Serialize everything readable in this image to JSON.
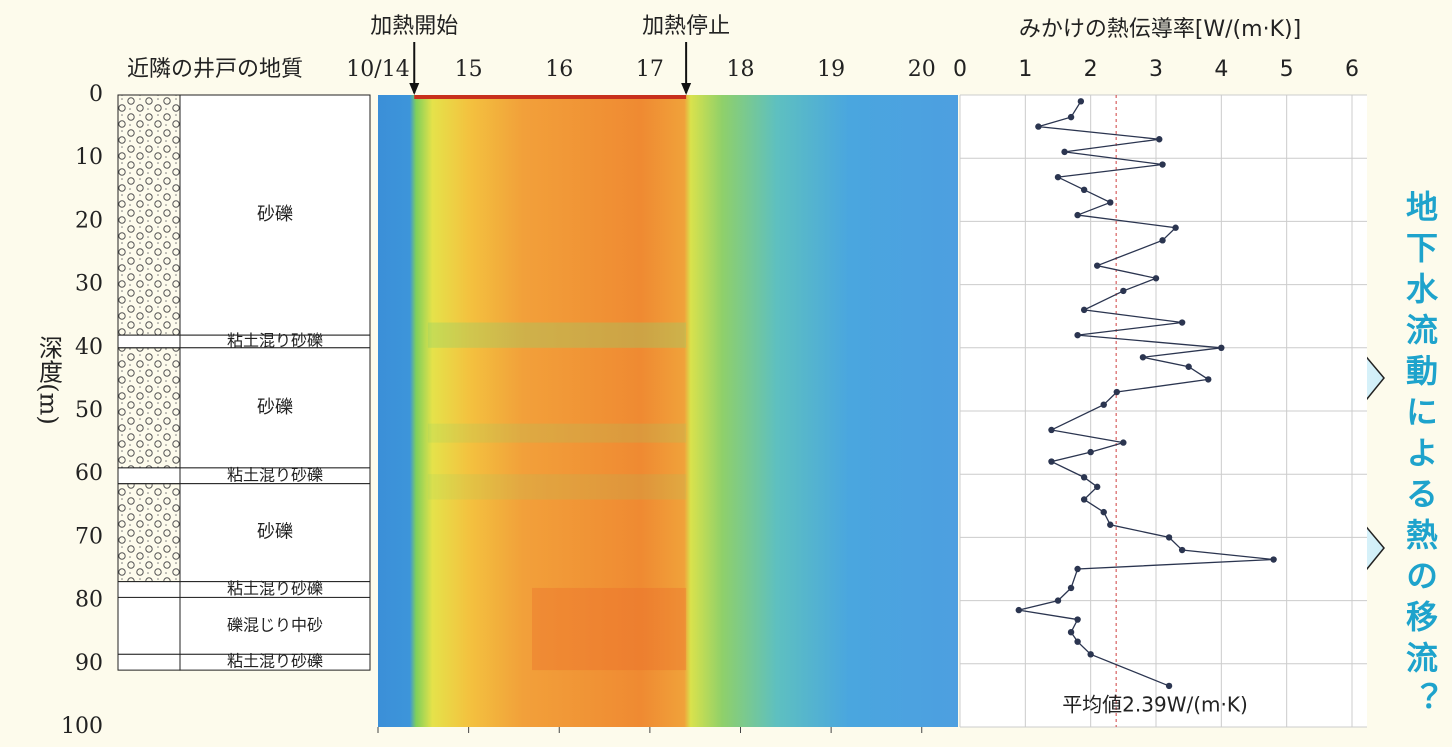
{
  "chart_data": [
    {
      "type": "strata",
      "title": "近隣の井戸の地質",
      "ylabel": "深度(m)",
      "ylim": [
        0,
        100
      ],
      "yticks": [
        0,
        10,
        20,
        30,
        40,
        50,
        60,
        70,
        80,
        90,
        100
      ],
      "layers": [
        {
          "name": "砂礫",
          "top": 0,
          "bottom": 38,
          "hatch": true
        },
        {
          "name": "粘土混り砂礫",
          "top": 38,
          "bottom": 40,
          "hatch": false
        },
        {
          "name": "砂礫",
          "top": 40,
          "bottom": 59,
          "hatch": true
        },
        {
          "name": "粘土混り砂礫",
          "top": 59,
          "bottom": 61.5,
          "hatch": false
        },
        {
          "name": "砂礫",
          "top": 61.5,
          "bottom": 77,
          "hatch": true
        },
        {
          "name": "粘土混り砂礫",
          "top": 77,
          "bottom": 79.5,
          "hatch": false
        },
        {
          "name": "礫混じり中砂",
          "top": 79.5,
          "bottom": 88.5,
          "hatch": false
        },
        {
          "name": "粘土混り砂礫",
          "top": 88.5,
          "bottom": 91,
          "hatch": false
        }
      ]
    },
    {
      "type": "heatmap",
      "xlim": [
        14,
        20.4
      ],
      "ylim": [
        0,
        100
      ],
      "xticks": [
        {
          "value": 14,
          "label": "10/14"
        },
        15,
        16,
        17,
        18,
        19,
        20
      ],
      "annotations": [
        {
          "text": "加熱開始",
          "x": 14.4
        },
        {
          "text": "加熱停止",
          "x": 17.4
        }
      ]
    },
    {
      "type": "line",
      "title": "みかけの熱伝導率[W/(m·K)]",
      "xlim": [
        0,
        6
      ],
      "ylim": [
        0,
        100
      ],
      "xticks": [
        0,
        1,
        2,
        3,
        4,
        5,
        6
      ],
      "color": "#2b3550",
      "grid": true,
      "depth": [
        1,
        3.5,
        5,
        7,
        9,
        11,
        13,
        15,
        17,
        19,
        21,
        23,
        27,
        29,
        31,
        34,
        36,
        38,
        40,
        41.5,
        43,
        45,
        47,
        49,
        53,
        55,
        56.5,
        58,
        60.5,
        62,
        64,
        66,
        68,
        70,
        72,
        73.5,
        75,
        78,
        80,
        81.5,
        83,
        85,
        86.5,
        88.5,
        93.5
      ],
      "values": [
        1.85,
        1.7,
        1.2,
        3.05,
        1.6,
        3.1,
        1.5,
        1.9,
        2.3,
        1.8,
        3.3,
        3.1,
        2.1,
        3.0,
        2.5,
        1.9,
        3.4,
        1.8,
        4.0,
        2.8,
        3.5,
        3.8,
        2.4,
        2.2,
        1.4,
        2.5,
        2.0,
        1.4,
        1.9,
        2.1,
        1.9,
        2.2,
        2.3,
        3.2,
        3.4,
        4.8,
        1.8,
        1.7,
        1.5,
        0.9,
        1.8,
        1.7,
        1.8,
        2.0,
        3.2
      ],
      "mean": {
        "value": 2.39,
        "label": "平均値2.39W/(m·K)",
        "color": "#d04040"
      }
    }
  ],
  "note": "地下水流動による熱の移流？"
}
